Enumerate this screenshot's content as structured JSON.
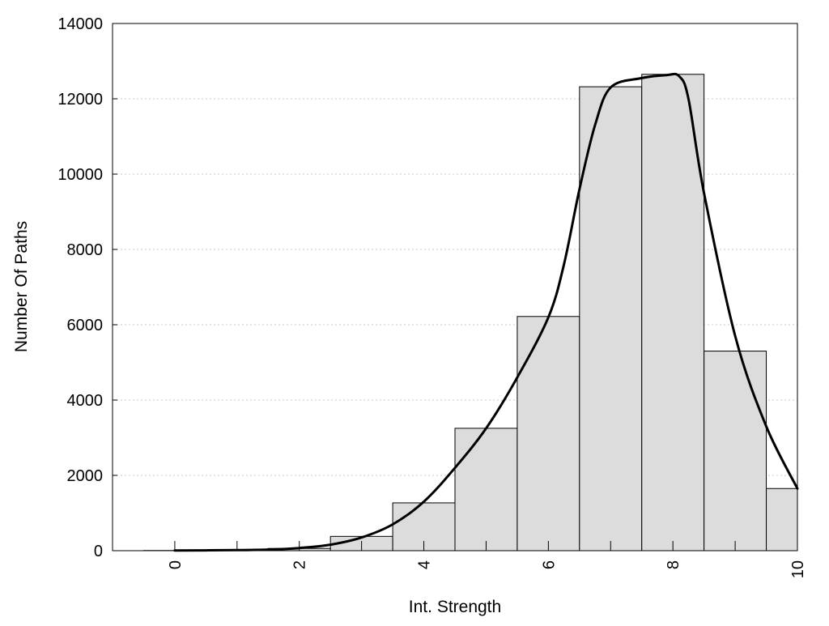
{
  "chart_data": {
    "type": "bar",
    "title": "",
    "xlabel": "Int. Strength",
    "ylabel": "Number Of Paths",
    "xlim": [
      -1,
      10
    ],
    "ylim": [
      0,
      14000
    ],
    "x_ticks": [
      0,
      2,
      4,
      6,
      8,
      10
    ],
    "x_tick_labels": [
      "0",
      "2",
      "4",
      "6",
      "8",
      "10"
    ],
    "y_ticks": [
      0,
      2000,
      4000,
      6000,
      8000,
      10000,
      12000,
      14000
    ],
    "y_tick_labels": [
      "0",
      "2000",
      "4000",
      "6000",
      "8000",
      "10000",
      "12000",
      "14000"
    ],
    "grid": "horizontal-dotted",
    "legend": "none",
    "colors": {
      "bar_fill": "#dcdcdc",
      "bar_stroke": "#000000",
      "line": "#000000",
      "grid": "#c8c8c8"
    },
    "bars": {
      "x": [
        0,
        1,
        2,
        3,
        4,
        5,
        6,
        7,
        8,
        9,
        10
      ],
      "width": 1,
      "values": [
        5,
        15,
        60,
        380,
        1270,
        3250,
        6220,
        12320,
        12650,
        5300,
        1650
      ]
    },
    "curve": {
      "x": [
        0,
        1,
        1.5,
        2,
        2.5,
        3,
        3.5,
        4,
        4.5,
        5,
        5.5,
        6,
        6.25,
        6.5,
        6.75,
        7,
        7.5,
        7.9,
        8.1,
        8.25,
        8.5,
        9,
        9.5,
        10
      ],
      "y": [
        5,
        15,
        30,
        70,
        160,
        350,
        700,
        1300,
        2200,
        3250,
        4600,
        6200,
        7600,
        9600,
        11300,
        12300,
        12550,
        12630,
        12600,
        12000,
        9500,
        5700,
        3300,
        1650
      ]
    }
  }
}
